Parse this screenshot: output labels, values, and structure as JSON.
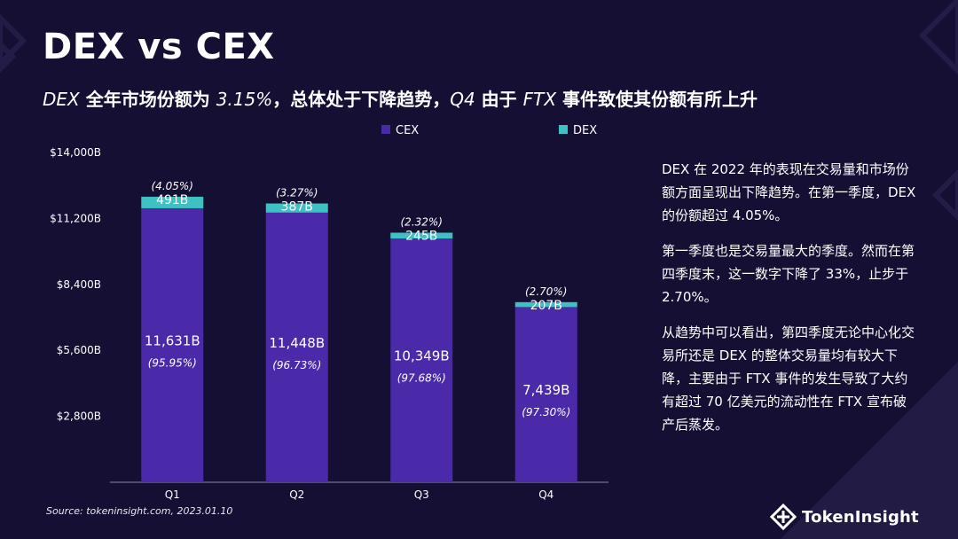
{
  "header": {
    "title": "DEX vs CEX",
    "subtitle_parts": [
      {
        "text": "DEX",
        "italic": true
      },
      {
        "text": " 全年市场份额为 ",
        "italic": false
      },
      {
        "text": "3.15%",
        "italic": true
      },
      {
        "text": "，总体处于下降趋势，",
        "italic": false
      },
      {
        "text": "Q4",
        "italic": true
      },
      {
        "text": " 由于 ",
        "italic": false
      },
      {
        "text": "FTX",
        "italic": true
      },
      {
        "text": " 事件致使其份额有所上升",
        "italic": false
      }
    ]
  },
  "chart_data": {
    "type": "bar",
    "stacked": true,
    "categories": [
      "Q1",
      "Q2",
      "Q3",
      "Q4"
    ],
    "series": [
      {
        "name": "CEX",
        "color": "#4a2aa9",
        "values": [
          11631,
          11448,
          10349,
          7439
        ],
        "labels": [
          "11,631B",
          "11,448B",
          "10,349B",
          "7,439B"
        ],
        "share_labels": [
          "(95.95%)",
          "(96.73%)",
          "(97.68%)",
          "(97.30%)"
        ]
      },
      {
        "name": "DEX",
        "color": "#3ec1c3",
        "values": [
          491,
          387,
          245,
          207
        ],
        "labels": [
          "491B",
          "387B",
          "245B",
          "207B"
        ],
        "share_labels": [
          "(4.05%)",
          "(3.27%)",
          "(2.32%)",
          "(2.70%)"
        ]
      }
    ],
    "ylim": [
      0,
      14000
    ],
    "yticks": [
      2800,
      5600,
      8400,
      11200,
      14000
    ],
    "ytick_labels": [
      "$2,800B",
      "$5,600B",
      "$8,400B",
      "$11,200B",
      "$14,000B"
    ],
    "legend_position": "top",
    "xlabel": "",
    "ylabel": ""
  },
  "source": "Source: tokeninsight.com, 2023.01.10",
  "commentary": [
    "DEX 在 2022 年的表现在交易量和市场份额方面呈现出下降趋势。在第一季度，DEX 的份额超过 4.05%。",
    "第一季度也是交易量最大的季度。然而在第四季度末，这一数字下降了 33%，止步于 2.70%。",
    "从趋势中可以看出，第四季度无论中心化交易所还是 DEX 的整体交易量均有较大下降，主要由于 FTX 事件的发生导致了大约有超过 70 亿美元的流动性在 FTX 宣布破产后蒸发。"
  ],
  "brand": {
    "name": "TokenInsight",
    "logo_icon": "tokeninsight-logo-icon"
  },
  "colors": {
    "background": "#150f33",
    "cex": "#4a2aa9",
    "dex": "#3ec1c3"
  }
}
